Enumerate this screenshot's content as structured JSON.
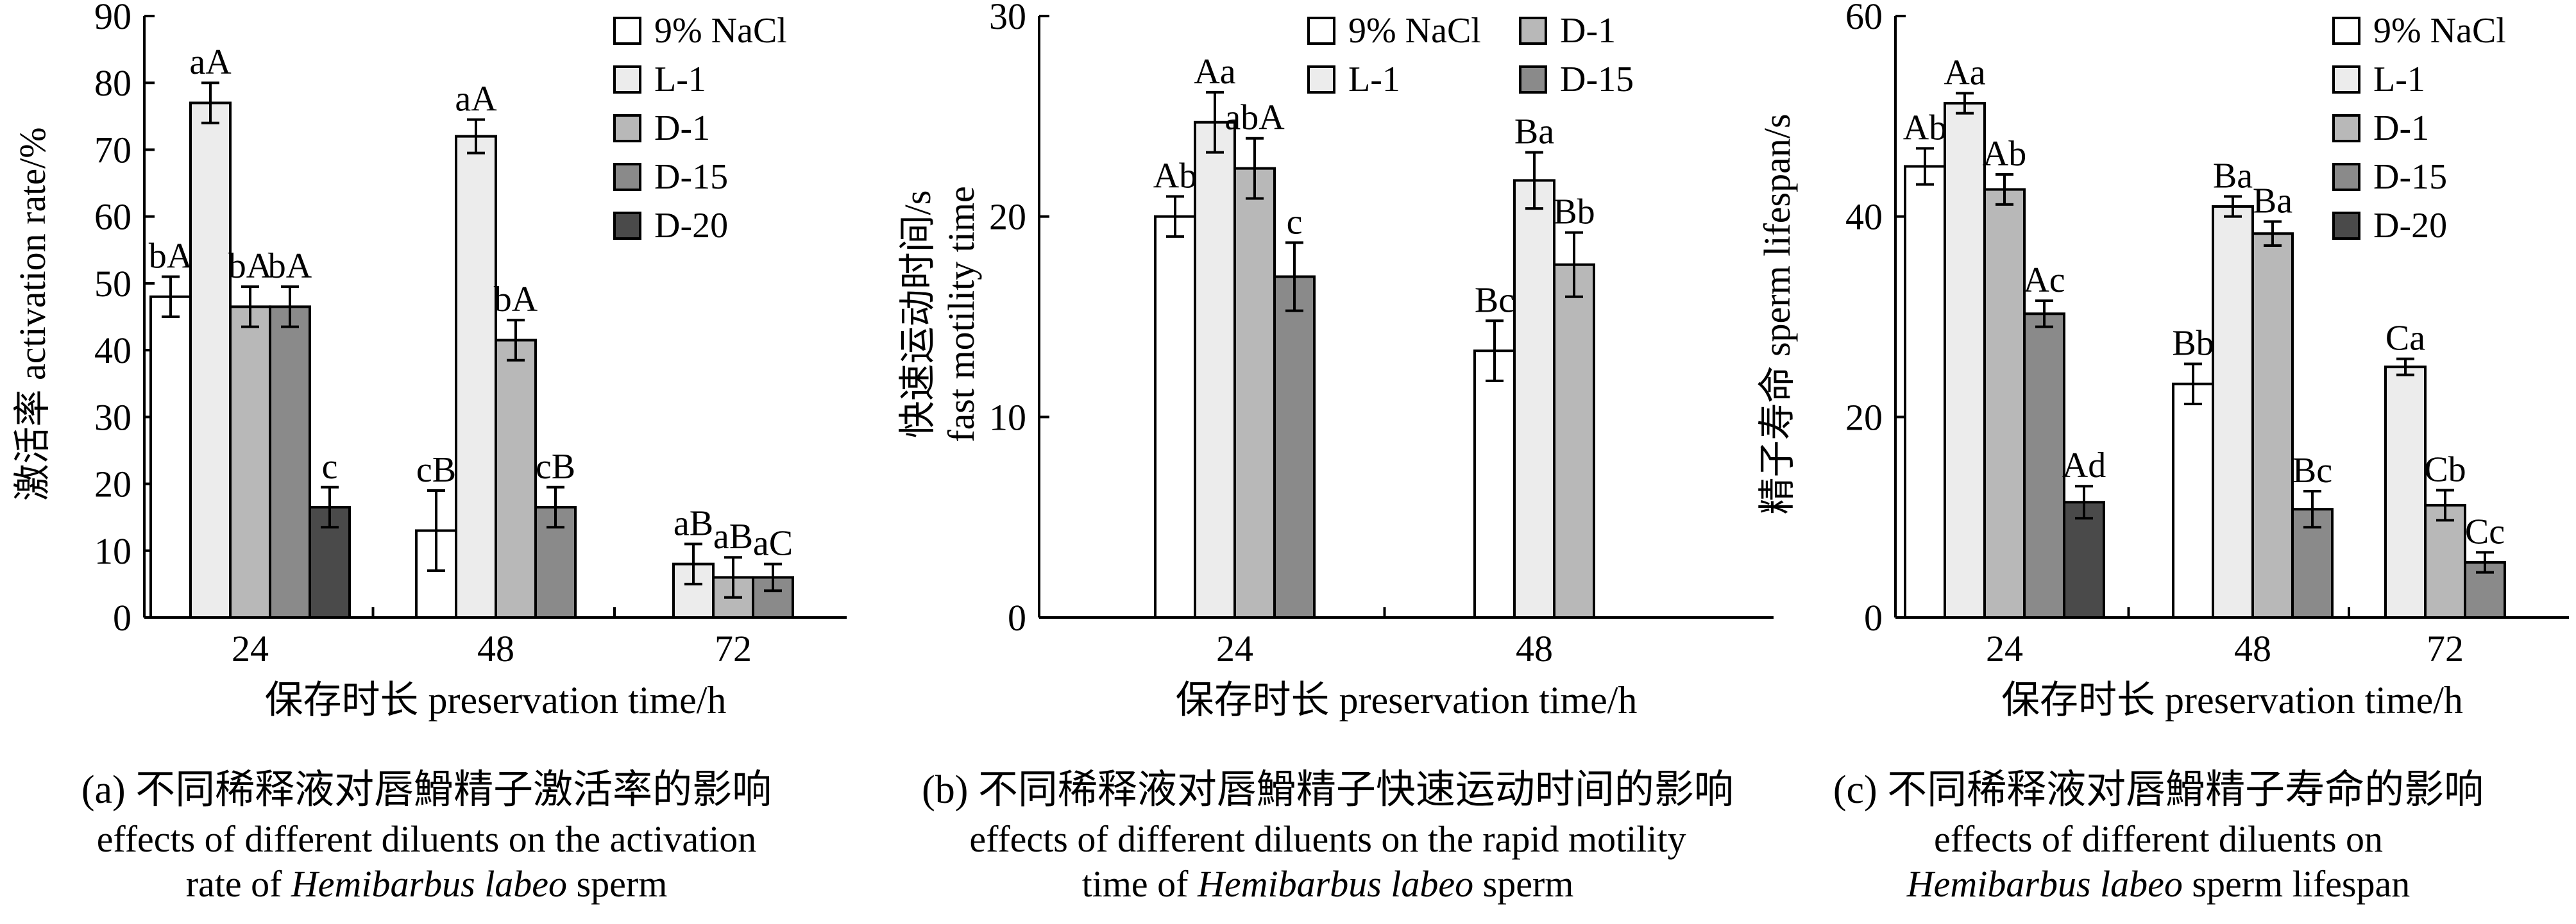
{
  "colors": {
    "9% NaCl": "#ffffff",
    "L-1": "#ececec",
    "D-1": "#b8b8b8",
    "D-15": "#8a8a8a",
    "D-20": "#4a4a4a"
  },
  "chart_data": [
    {
      "id": "a",
      "type": "bar",
      "categories": [
        "24",
        "48",
        "72"
      ],
      "xlabel": "保存时长 preservation time/h",
      "ylabel": "激活率 activation rate/%",
      "ylim": [
        0,
        90
      ],
      "yticks": [
        0,
        10,
        20,
        30,
        40,
        50,
        60,
        70,
        80,
        90
      ],
      "legend": {
        "placement": "top-right",
        "layout": "1col",
        "entries": [
          "9% NaCl",
          "L-1",
          "D-1",
          "D-15",
          "D-20"
        ]
      },
      "series": [
        {
          "name": "9% NaCl",
          "values": [
            48,
            13,
            null
          ],
          "errors": [
            3,
            6,
            null
          ],
          "labels": [
            "bA",
            "cB",
            ""
          ]
        },
        {
          "name": "L-1",
          "values": [
            77,
            72,
            8
          ],
          "errors": [
            3,
            2.5,
            3
          ],
          "labels": [
            "aA",
            "aA",
            "aB"
          ]
        },
        {
          "name": "D-1",
          "values": [
            46.5,
            41.5,
            6
          ],
          "errors": [
            3,
            3,
            3
          ],
          "labels": [
            "bA",
            "bA",
            "aB"
          ]
        },
        {
          "name": "D-15",
          "values": [
            46.5,
            16.5,
            6
          ],
          "errors": [
            3,
            3,
            2
          ],
          "labels": [
            "bA",
            "cB",
            "aC"
          ]
        },
        {
          "name": "D-20",
          "values": [
            16.5,
            null,
            null
          ],
          "errors": [
            3,
            null,
            null
          ],
          "labels": [
            "c",
            "",
            ""
          ]
        }
      ],
      "caption_cn": "(a) 不同稀释液对唇䱻精子激活率的影响",
      "caption_en_1": "effects of different diluents on the activation",
      "caption_en_2_pre": "rate of ",
      "caption_en_2_italic": "Hemibarbus labeo",
      "caption_en_2_post": " sperm"
    },
    {
      "id": "b",
      "type": "bar",
      "categories": [
        "24",
        "48"
      ],
      "xlabel": "保存时长 preservation time/h",
      "ylabel": "快速运动时间/s",
      "ylabel2": "fast motility time",
      "ylim": [
        0,
        30
      ],
      "yticks": [
        0,
        10,
        20,
        30
      ],
      "legend": {
        "placement": "top-right",
        "layout": "2col",
        "entries": [
          "9% NaCl",
          "D-1",
          "L-1",
          "D-15"
        ]
      },
      "series": [
        {
          "name": "9% NaCl",
          "values": [
            20,
            13.3
          ],
          "errors": [
            1,
            1.5
          ],
          "labels": [
            "Ab",
            "Bc"
          ]
        },
        {
          "name": "L-1",
          "values": [
            24.7,
            21.8
          ],
          "errors": [
            1.5,
            1.4
          ],
          "labels": [
            "Aa",
            "Ba"
          ]
        },
        {
          "name": "D-1",
          "values": [
            22.4,
            17.6
          ],
          "errors": [
            1.5,
            1.6
          ],
          "labels": [
            "abA",
            "Bb"
          ]
        },
        {
          "name": "D-15",
          "values": [
            17,
            null
          ],
          "errors": [
            1.7,
            null
          ],
          "labels": [
            "c",
            ""
          ]
        }
      ],
      "caption_cn": "(b) 不同稀释液对唇䱻精子快速运动时间的影响",
      "caption_en_1": "effects of different diluents on the rapid motility",
      "caption_en_2_pre": "time of ",
      "caption_en_2_italic": "Hemibarbus labeo",
      "caption_en_2_post": " sperm"
    },
    {
      "id": "c",
      "type": "bar",
      "categories": [
        "24",
        "48",
        "72"
      ],
      "xlabel": "保存时长 preservation time/h",
      "ylabel": "精子寿命 sperm lifespan/s",
      "ylim": [
        0,
        60
      ],
      "yticks": [
        0,
        20,
        40,
        60
      ],
      "legend": {
        "placement": "top-right",
        "layout": "1col",
        "entries": [
          "9% NaCl",
          "L-1",
          "D-1",
          "D-15",
          "D-20"
        ]
      },
      "series": [
        {
          "name": "9% NaCl",
          "values": [
            45,
            23.3,
            null
          ],
          "errors": [
            1.8,
            2,
            null
          ],
          "labels": [
            "Ab",
            "Bb",
            ""
          ]
        },
        {
          "name": "L-1",
          "values": [
            51.3,
            41,
            25
          ],
          "errors": [
            1,
            1,
            0.8
          ],
          "labels": [
            "Aa",
            "Ba",
            "Ca"
          ]
        },
        {
          "name": "D-1",
          "values": [
            42.7,
            38.3,
            11.2
          ],
          "errors": [
            1.5,
            1.2,
            1.5
          ],
          "labels": [
            "Ab",
            "Ba",
            "Cb"
          ]
        },
        {
          "name": "D-15",
          "values": [
            30.3,
            10.8,
            5.5
          ],
          "errors": [
            1.3,
            1.8,
            1
          ],
          "labels": [
            "Ac",
            "Bc",
            "Cc"
          ]
        },
        {
          "name": "D-20",
          "values": [
            11.5,
            null,
            null
          ],
          "errors": [
            1.6,
            null,
            null
          ],
          "labels": [
            "Ad",
            "",
            ""
          ]
        }
      ],
      "caption_cn": "(c) 不同稀释液对唇䱻精子寿命的影响",
      "caption_en_1": "effects of different diluents on",
      "caption_en_2_pre": "",
      "caption_en_2_italic": "Hemibarbus labeo",
      "caption_en_2_post": " sperm lifespan"
    }
  ]
}
